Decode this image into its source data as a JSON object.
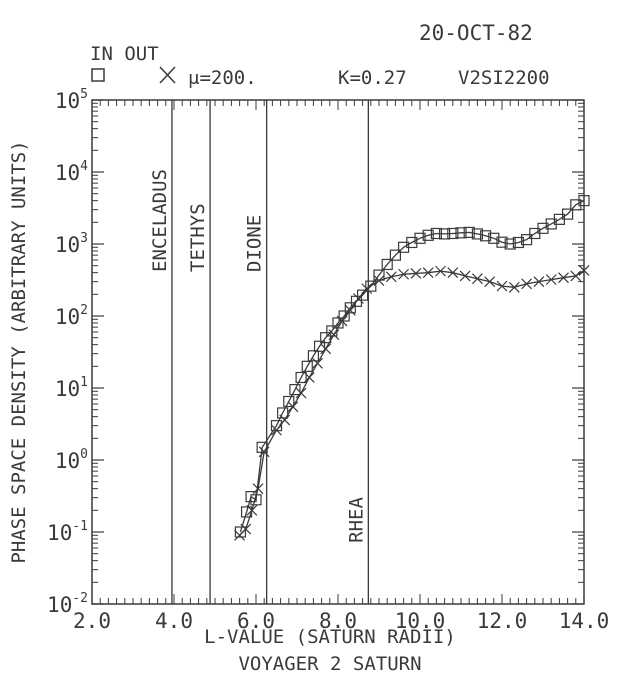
{
  "header": {
    "date": "20-OCT-82",
    "legend_title": "IN OUT",
    "mu_label": "μ=200.",
    "k_label": "K=0.27",
    "run_id": "V2SI2200"
  },
  "moons": [
    {
      "name": "ENCELADUS",
      "L": 3.95
    },
    {
      "name": "TETHYS",
      "L": 4.88
    },
    {
      "name": "DIONE",
      "L": 6.26
    },
    {
      "name": "RHEA",
      "L": 8.74
    }
  ],
  "chart_data": {
    "type": "line",
    "title": "VOYAGER 2 SATURN",
    "xlabel": "L-VALUE (SATURN RADII)",
    "ylabel": "PHASE SPACE DENSITY (ARBITRARY UNITS)",
    "xlim": [
      2.0,
      14.0
    ],
    "ylim_exponent": [
      -2,
      5
    ],
    "yscale": "log",
    "x_ticks": [
      "2.0",
      "4.0",
      "6.0",
      "8.0",
      "10.0",
      "12.0",
      "14.0"
    ],
    "x_tick_values": [
      2,
      4,
      6,
      8,
      10,
      12,
      14
    ],
    "y_ticks": [
      {
        "base": "10",
        "exp": "-2"
      },
      {
        "base": "10",
        "exp": "-1"
      },
      {
        "base": "10",
        "exp": "0"
      },
      {
        "base": "10",
        "exp": "1"
      },
      {
        "base": "10",
        "exp": "2"
      },
      {
        "base": "10",
        "exp": "3"
      },
      {
        "base": "10",
        "exp": "4"
      },
      {
        "base": "10",
        "exp": "5"
      }
    ],
    "y_tick_exponents": [
      -2,
      -1,
      0,
      1,
      2,
      3,
      4,
      5
    ],
    "series": [
      {
        "name": "IN",
        "marker": "square",
        "x": [
          5.62,
          5.77,
          5.88,
          6.0,
          6.15,
          6.5,
          6.65,
          6.8,
          6.95,
          7.1,
          7.25,
          7.4,
          7.55,
          7.7,
          7.85,
          8.0,
          8.15,
          8.3,
          8.45,
          8.6,
          8.8,
          9.0,
          9.2,
          9.4,
          9.6,
          9.8,
          10.0,
          10.2,
          10.4,
          10.6,
          10.8,
          11.0,
          11.2,
          11.4,
          11.6,
          11.8,
          12.0,
          12.2,
          12.4,
          12.6,
          12.8,
          13.0,
          13.2,
          13.4,
          13.6,
          13.8,
          14.0
        ],
        "y": [
          0.1,
          0.19,
          0.31,
          0.28,
          1.5,
          3.0,
          4.5,
          6.5,
          9.5,
          14,
          20,
          28,
          38,
          50,
          62,
          80,
          100,
          130,
          160,
          195,
          260,
          370,
          520,
          700,
          900,
          1050,
          1200,
          1320,
          1400,
          1380,
          1400,
          1430,
          1450,
          1380,
          1300,
          1200,
          1060,
          1000,
          1050,
          1150,
          1400,
          1650,
          1900,
          2200,
          2600,
          3500,
          4000
        ]
      },
      {
        "name": "OUT",
        "marker": "x",
        "x": [
          5.6,
          5.75,
          5.9,
          6.05,
          6.2,
          6.5,
          6.7,
          6.9,
          7.1,
          7.3,
          7.5,
          7.7,
          7.9,
          8.1,
          8.3,
          8.5,
          8.7,
          9.0,
          9.3,
          9.6,
          9.9,
          10.2,
          10.5,
          10.8,
          11.1,
          11.4,
          11.7,
          12.0,
          12.3,
          12.6,
          12.9,
          13.2,
          13.5,
          13.8,
          14.0
        ],
        "y": [
          0.09,
          0.11,
          0.2,
          0.4,
          1.3,
          2.6,
          3.6,
          5.5,
          8.5,
          14,
          22,
          35,
          55,
          85,
          120,
          175,
          240,
          310,
          350,
          380,
          390,
          400,
          420,
          400,
          360,
          330,
          300,
          260,
          250,
          280,
          300,
          320,
          340,
          360,
          430
        ]
      }
    ]
  }
}
